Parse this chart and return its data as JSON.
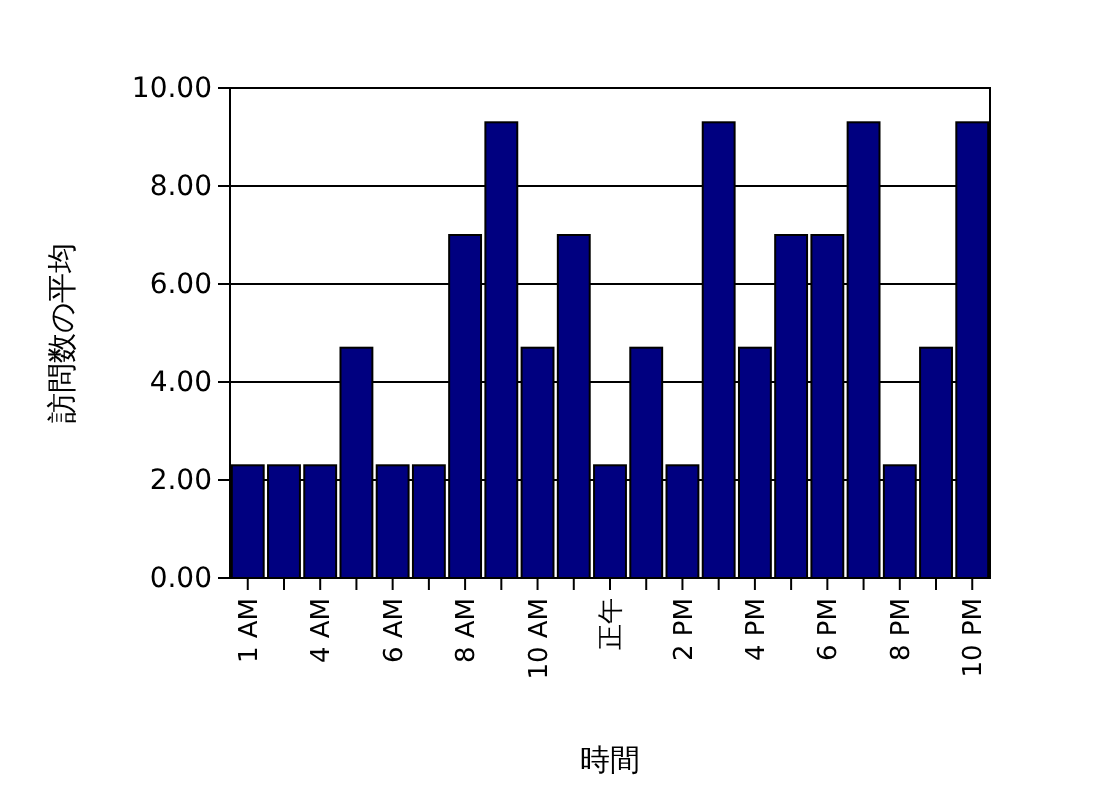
{
  "chart_data": {
    "type": "bar",
    "xlabel": "時間",
    "ylabel": "訪問数の平均",
    "categories": [
      "1 AM",
      null,
      "4 AM",
      null,
      "6 AM",
      null,
      "8 AM",
      null,
      "10 AM",
      null,
      "正午",
      null,
      "2 PM",
      null,
      "4 PM",
      null,
      "6 PM",
      null,
      "8 PM",
      null,
      "10 PM"
    ],
    "values": [
      2.3,
      2.3,
      2.3,
      4.7,
      2.3,
      2.3,
      7.0,
      9.3,
      4.7,
      7.0,
      2.3,
      4.7,
      2.3,
      9.3,
      4.7,
      7.0,
      7.0,
      9.3,
      2.3,
      4.7,
      9.3
    ],
    "color": "#000080",
    "ylim": [
      0,
      10
    ],
    "yticks": [
      {
        "value": 0,
        "label": "0.00"
      },
      {
        "value": 2,
        "label": "2.00"
      },
      {
        "value": 4,
        "label": "4.00"
      },
      {
        "value": 6,
        "label": "6.00"
      },
      {
        "value": 8,
        "label": "8.00"
      },
      {
        "value": 10,
        "label": "10.00"
      }
    ],
    "grid": "y"
  }
}
